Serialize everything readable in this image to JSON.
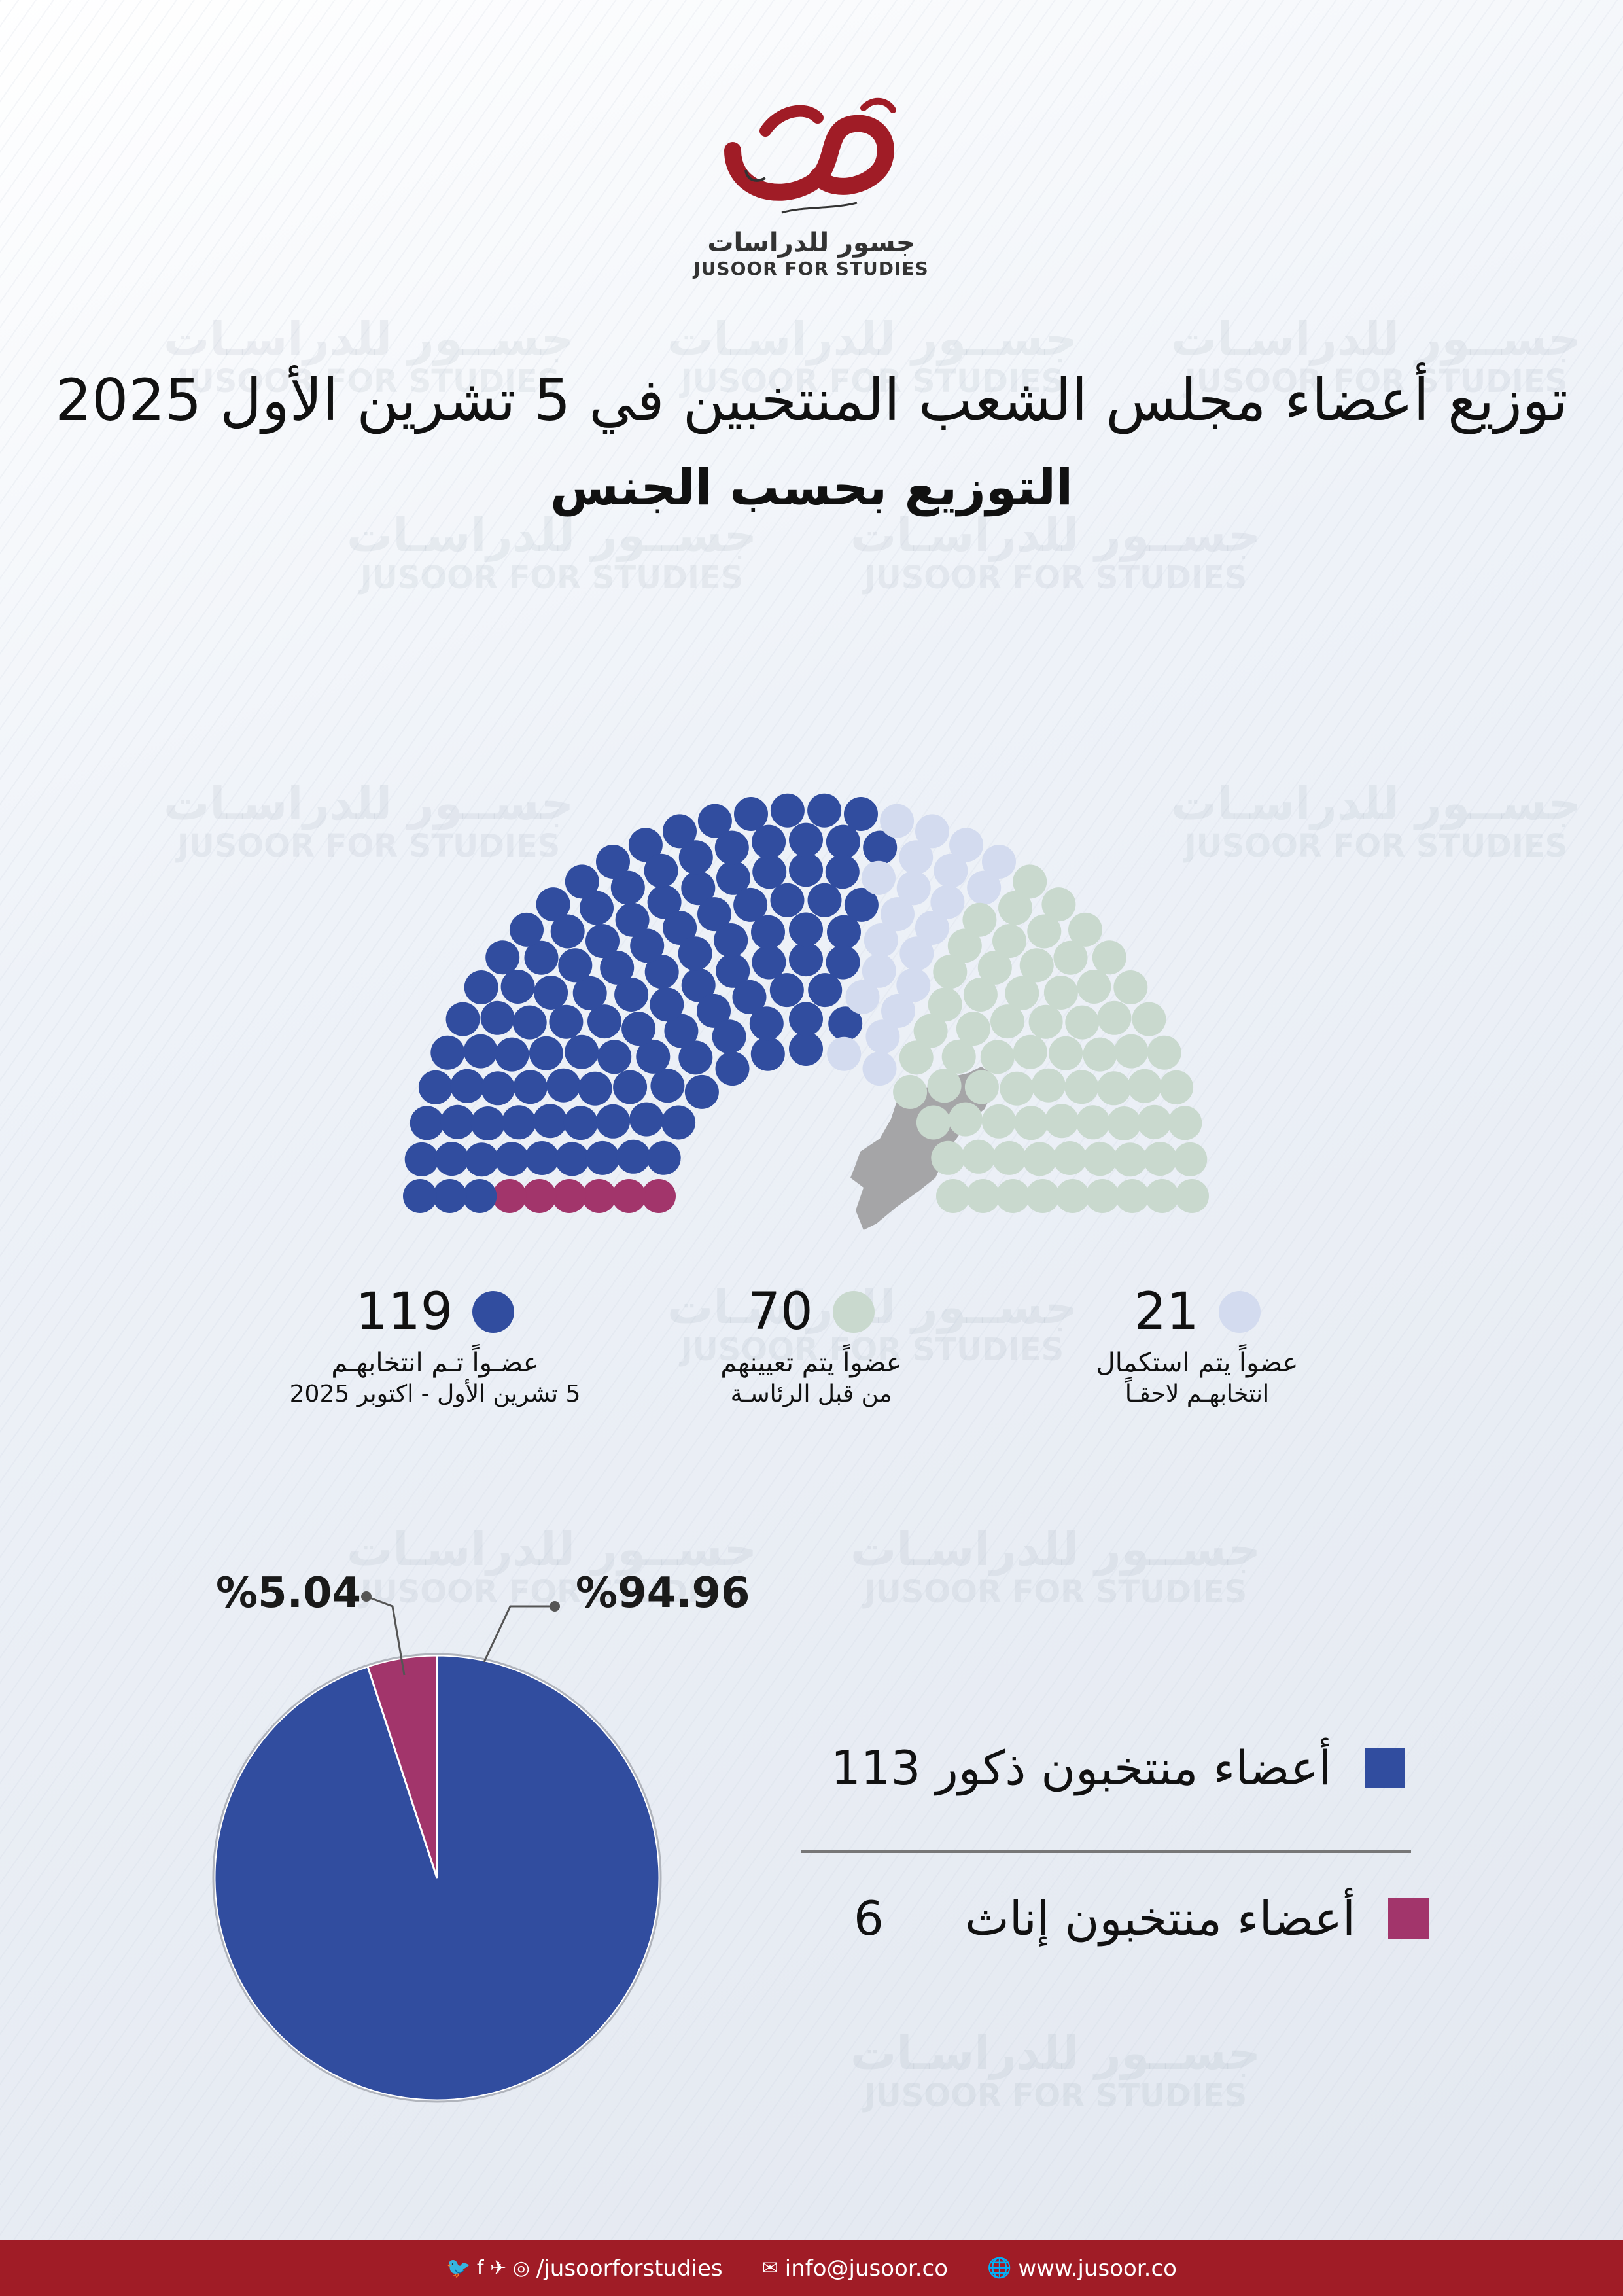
{
  "brand": {
    "ar": "جسور للدراسات",
    "en": "JUSOOR FOR STUDIES"
  },
  "watermark": {
    "ar": "جســور للدراسـات",
    "en": "JUSOOR FOR STUDIES"
  },
  "title": "توزيع أعضاء مجلس الشعب المنتخبين في 5 تشرين الأول 2025",
  "subtitle": "التوزيع بحسب الجنس",
  "legend": {
    "elected_line1": "عضـواً تـم انتخابهـم",
    "elected_line2": "5 تشرين الأول - اكتوبر 2025",
    "appointed_line1": "عضواً يتم تعيينهم",
    "appointed_line2": "من قبل الرئاسـة",
    "pending_line1": "عضواً يتم استكمال",
    "pending_line2": "انتخابهـم لاحقـاً"
  },
  "chart_data": [
    {
      "type": "parliament",
      "title": "توزيع أعضاء مجلس الشعب",
      "total_seats": 210,
      "series": [
        {
          "name": "منتخبون",
          "value": 119,
          "color": "#314d9f",
          "female_subset": 6,
          "female_color": "#a2356b"
        },
        {
          "name": "معينون من قبل الرئاسة",
          "value": 70,
          "color": "#c9d9ce"
        },
        {
          "name": "يتم استكمال انتخابهم لاحقاً",
          "value": 21,
          "color": "#d3dbef"
        }
      ]
    },
    {
      "type": "pie",
      "title": "التوزيع بحسب الجنس",
      "series": [
        {
          "name": "أعضاء منتخبون ذكور",
          "value": 113,
          "percent": 94.96,
          "color": "#314d9f"
        },
        {
          "name": "أعضاء منتخبون إناث",
          "value": 6,
          "percent": 5.04,
          "color": "#a2356b"
        }
      ],
      "label_texts": [
        "%94.96",
        "%5.04"
      ]
    }
  ],
  "footer": {
    "website": "www.jusoor.co",
    "email": "info@jusoor.co",
    "social": "/jusoorforstudies"
  }
}
